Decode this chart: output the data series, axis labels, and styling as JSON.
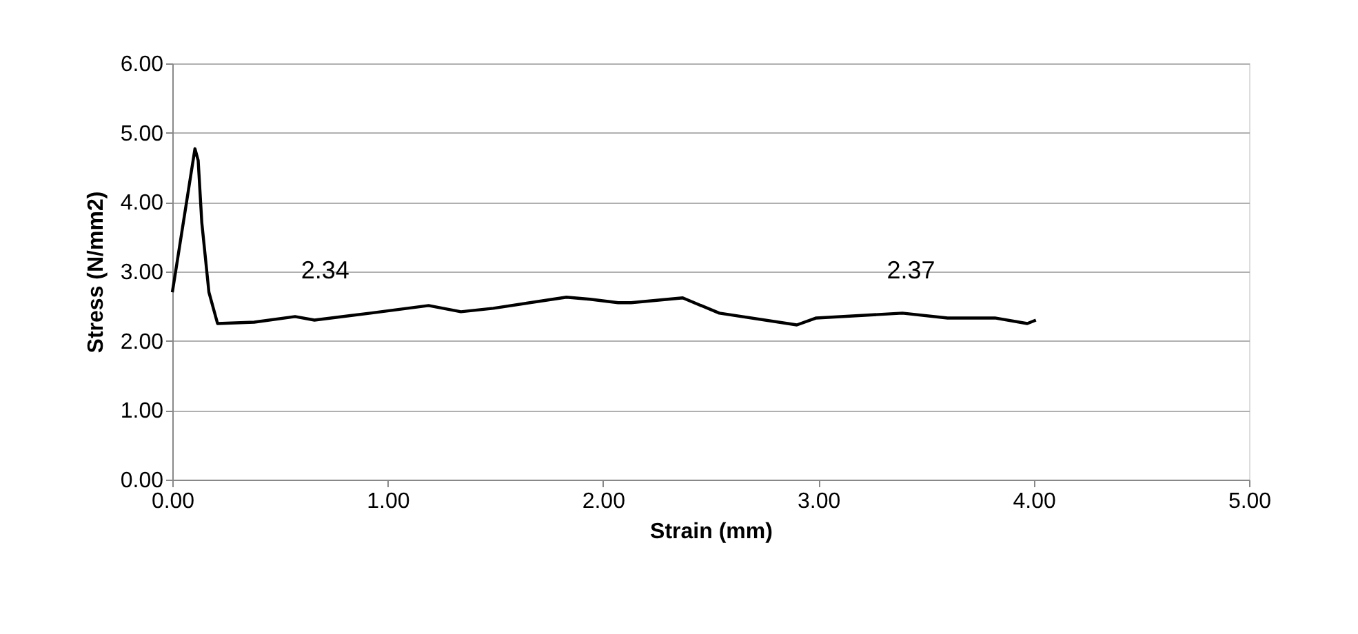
{
  "chart_data": {
    "type": "line",
    "xlabel": "Strain (mm)",
    "ylabel": "Stress (N/mm2)",
    "xlim": [
      0,
      5
    ],
    "ylim": [
      0,
      6
    ],
    "xticks": [
      {
        "value": 0,
        "label": "0.00"
      },
      {
        "value": 1,
        "label": "1.00"
      },
      {
        "value": 2,
        "label": "2.00"
      },
      {
        "value": 3,
        "label": "3.00"
      },
      {
        "value": 4,
        "label": "4.00"
      },
      {
        "value": 5,
        "label": "5.00"
      }
    ],
    "yticks": [
      {
        "value": 0,
        "label": "0.00"
      },
      {
        "value": 1,
        "label": "1.00"
      },
      {
        "value": 2,
        "label": "2.00"
      },
      {
        "value": 3,
        "label": "3.00"
      },
      {
        "value": 4,
        "label": "4.00"
      },
      {
        "value": 5,
        "label": "5.00"
      },
      {
        "value": 6,
        "label": "6.00"
      }
    ],
    "grid": "y",
    "marker": "none",
    "line_style": "solid",
    "x": [
      0,
      0.105,
      0.12,
      0.137,
      0.17,
      0.21,
      0.38,
      0.57,
      0.66,
      0.92,
      1.19,
      1.34,
      1.49,
      1.83,
      1.94,
      2.07,
      2.13,
      2.37,
      2.54,
      2.9,
      2.99,
      3.39,
      3.6,
      3.82,
      3.97,
      4.01
    ],
    "series": [
      {
        "color": "#000000",
        "values": [
          2.7,
          4.77,
          4.6,
          3.7,
          2.7,
          2.25,
          2.27,
          2.35,
          2.3,
          2.4,
          2.51,
          2.42,
          2.47,
          2.63,
          2.6,
          2.55,
          2.55,
          2.62,
          2.4,
          2.23,
          2.33,
          2.4,
          2.33,
          2.33,
          2.25,
          2.3
        ]
      }
    ],
    "annotations": [
      "2.34",
      "2.37"
    ]
  }
}
